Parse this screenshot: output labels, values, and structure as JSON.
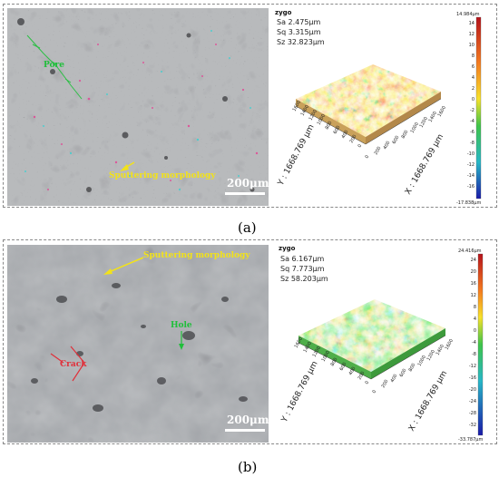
{
  "panel_a": {
    "label": "(a)",
    "sa": "Sa 2.475μm",
    "sq": "Sq 3.315μm",
    "sz": "Sz 32.823μm",
    "brand": "zygo",
    "cb_max": "14.984μm",
    "cb_min": "-17.838μm",
    "cb_ticks": [
      "14",
      "12",
      "10",
      "8",
      "6",
      "4",
      "2",
      "0",
      "-2",
      "-4",
      "-6",
      "-8",
      "-10",
      "-12",
      "-14",
      "-16"
    ],
    "y_axis": "Y : 1668.769 μm",
    "x_axis": "X : 1668.769 μm",
    "y_ticks": [
      "1600",
      "1400",
      "1200",
      "1000",
      "800",
      "600",
      "400",
      "200",
      "0"
    ],
    "x_ticks": [
      "0",
      "200",
      "400",
      "600",
      "800",
      "1000",
      "1200",
      "1400",
      "1600"
    ],
    "annotation_1": "Pore",
    "annotation_2": "Sputtering morphology",
    "scale": "200μm"
  },
  "panel_b": {
    "label": "(b)",
    "sa": "Sa 6.167μm",
    "sq": "Sq 7.773μm",
    "sz": "Sz 58.203μm",
    "brand": "zygo",
    "cb_max": "24.416μm",
    "cb_min": "-33.787μm",
    "cb_ticks": [
      "24",
      "20",
      "16",
      "12",
      "8",
      "4",
      "0",
      "-4",
      "-8",
      "-12",
      "-16",
      "-20",
      "-24",
      "-28",
      "-32"
    ],
    "y_axis": "Y : 1668.769 μm",
    "x_axis": "X : 1668.769 μm",
    "y_ticks": [
      "1600",
      "1400",
      "1200",
      "1000",
      "800",
      "600",
      "400",
      "200",
      "0"
    ],
    "x_ticks": [
      "0",
      "200",
      "400",
      "600",
      "800",
      "1000",
      "1200",
      "1400",
      "1600"
    ],
    "annotation_1": "Sputtering morphology",
    "annotation_2": "Hole",
    "annotation_3": "Crack",
    "scale": "200μm"
  },
  "colors": {
    "pore_label": "#1fbf3a",
    "sputter_label": "#f2e21a",
    "crack_label": "#e0303a",
    "colorbar_top": "#b5121b",
    "colorbar_bottom": "#1a1aa8"
  }
}
